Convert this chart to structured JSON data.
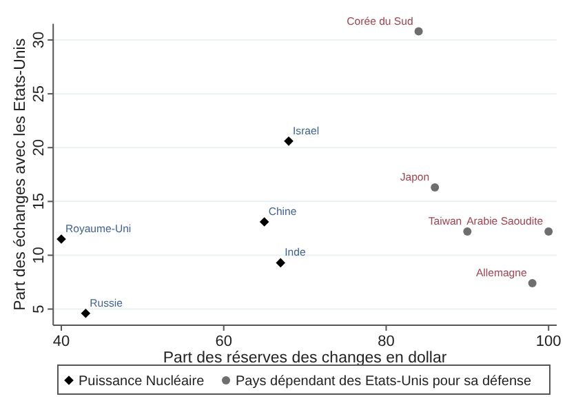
{
  "chart_data": {
    "type": "scatter",
    "xlabel": "Part des réserves des changes en dollar",
    "ylabel": "Part des échanges avec les Etats-Unis",
    "xlim": [
      39,
      101
    ],
    "xticks": [
      40,
      60,
      80,
      100
    ],
    "ylim": [
      3.5,
      31.5
    ],
    "yticks": [
      5,
      10,
      15,
      20,
      25,
      30
    ],
    "grid": "y",
    "legend": "bottom",
    "series": [
      {
        "name": "Puissance Nucléaire",
        "color": "#000000",
        "marker": "diamond",
        "x": [
          68,
          40,
          65,
          67,
          43
        ],
        "values": [
          20.6,
          11.5,
          13.1,
          9.3,
          4.6
        ]
      },
      {
        "name": "Pays dépendant des Etats-Unis pour sa défense",
        "color": "#6e6e6e",
        "marker": "circle",
        "x": [
          84,
          86,
          90,
          100,
          98
        ],
        "values": [
          30.8,
          16.3,
          12.2,
          12.2,
          7.4
        ]
      }
    ],
    "annotations": [
      {
        "text": "Israel",
        "x": 68,
        "y": 20.6
      },
      {
        "text": "Royaume-Uni",
        "x": 40,
        "y": 11.5
      },
      {
        "text": "Chine",
        "x": 65,
        "y": 13.1
      },
      {
        "text": "Inde",
        "x": 67,
        "y": 9.3
      },
      {
        "text": "Russie",
        "x": 43,
        "y": 4.6
      },
      {
        "text": "Corée du Sud",
        "x": 84,
        "y": 30.8
      },
      {
        "text": "Japon",
        "x": 86,
        "y": 16.3
      },
      {
        "text": "Taiwan",
        "x": 90,
        "y": 12.2
      },
      {
        "text": "Arabie Saoudite",
        "x": 100,
        "y": 12.2
      },
      {
        "text": "Allemagne",
        "x": 98,
        "y": 7.4
      }
    ]
  }
}
